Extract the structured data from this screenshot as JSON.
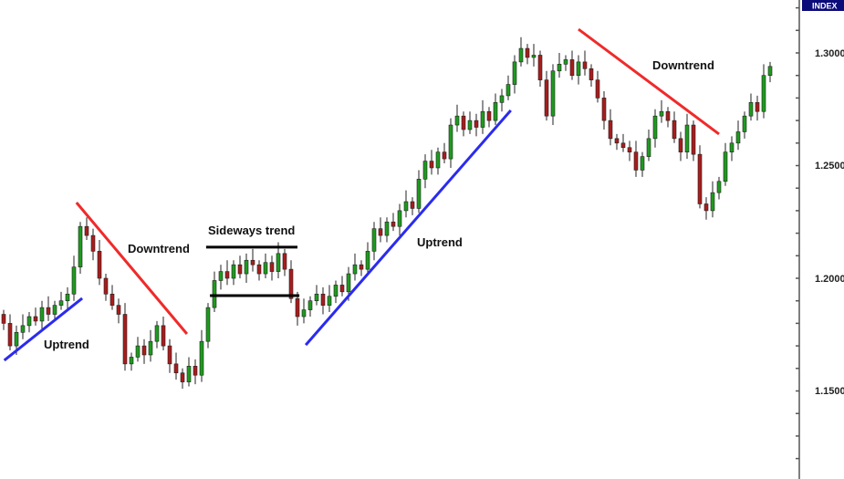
{
  "chart_data": {
    "type": "candlestick",
    "title": "",
    "badge": "INDEX",
    "ylim": [
      1.11,
      1.323
    ],
    "y_ticks": [
      "1.3000",
      "1.2500",
      "1.2000",
      "1.1500"
    ],
    "y_tick_values": [
      1.3,
      1.25,
      1.2,
      1.15
    ],
    "grid": false,
    "colors": {
      "up": "#1e9a1e",
      "down": "#a81c1c",
      "uptrend": "#2b2bf0",
      "downtrend": "#f02a2a",
      "sideways": "#000000",
      "badge": "#0b0b7a"
    },
    "candles": [
      [
        1.184,
        1.186,
        1.177,
        1.18
      ],
      [
        1.18,
        1.184,
        1.168,
        1.17
      ],
      [
        1.17,
        1.179,
        1.166,
        1.176
      ],
      [
        1.176,
        1.184,
        1.173,
        1.179
      ],
      [
        1.179,
        1.185,
        1.176,
        1.183
      ],
      [
        1.183,
        1.187,
        1.179,
        1.181
      ],
      [
        1.181,
        1.19,
        1.177,
        1.187
      ],
      [
        1.187,
        1.192,
        1.181,
        1.184
      ],
      [
        1.184,
        1.19,
        1.181,
        1.188
      ],
      [
        1.188,
        1.194,
        1.186,
        1.19
      ],
      [
        1.19,
        1.196,
        1.186,
        1.193
      ],
      [
        1.193,
        1.21,
        1.19,
        1.205
      ],
      [
        1.205,
        1.225,
        1.202,
        1.223
      ],
      [
        1.223,
        1.227,
        1.217,
        1.219
      ],
      [
        1.219,
        1.222,
        1.208,
        1.212
      ],
      [
        1.212,
        1.217,
        1.197,
        1.2
      ],
      [
        1.2,
        1.202,
        1.19,
        1.193
      ],
      [
        1.193,
        1.197,
        1.186,
        1.188
      ],
      [
        1.188,
        1.191,
        1.18,
        1.184
      ],
      [
        1.184,
        1.189,
        1.159,
        1.162
      ],
      [
        1.162,
        1.167,
        1.159,
        1.165
      ],
      [
        1.165,
        1.174,
        1.163,
        1.17
      ],
      [
        1.17,
        1.173,
        1.162,
        1.166
      ],
      [
        1.166,
        1.177,
        1.163,
        1.172
      ],
      [
        1.172,
        1.181,
        1.169,
        1.179
      ],
      [
        1.179,
        1.183,
        1.168,
        1.17
      ],
      [
        1.17,
        1.173,
        1.158,
        1.162
      ],
      [
        1.162,
        1.167,
        1.155,
        1.158
      ],
      [
        1.158,
        1.16,
        1.151,
        1.154
      ],
      [
        1.154,
        1.165,
        1.152,
        1.161
      ],
      [
        1.161,
        1.164,
        1.153,
        1.157
      ],
      [
        1.157,
        1.177,
        1.154,
        1.172
      ],
      [
        1.172,
        1.189,
        1.169,
        1.187
      ],
      [
        1.187,
        1.203,
        1.185,
        1.199
      ],
      [
        1.199,
        1.206,
        1.195,
        1.203
      ],
      [
        1.203,
        1.208,
        1.197,
        1.2
      ],
      [
        1.2,
        1.208,
        1.197,
        1.206
      ],
      [
        1.206,
        1.21,
        1.2,
        1.202
      ],
      [
        1.202,
        1.211,
        1.198,
        1.208
      ],
      [
        1.208,
        1.213,
        1.203,
        1.206
      ],
      [
        1.206,
        1.208,
        1.199,
        1.202
      ],
      [
        1.202,
        1.211,
        1.2,
        1.207
      ],
      [
        1.207,
        1.21,
        1.199,
        1.203
      ],
      [
        1.203,
        1.216,
        1.2,
        1.211
      ],
      [
        1.211,
        1.213,
        1.201,
        1.204
      ],
      [
        1.204,
        1.208,
        1.189,
        1.191
      ],
      [
        1.191,
        1.194,
        1.179,
        1.183
      ],
      [
        1.183,
        1.191,
        1.18,
        1.186
      ],
      [
        1.186,
        1.192,
        1.183,
        1.19
      ],
      [
        1.19,
        1.197,
        1.188,
        1.193
      ],
      [
        1.193,
        1.196,
        1.184,
        1.188
      ],
      [
        1.188,
        1.197,
        1.185,
        1.192
      ],
      [
        1.192,
        1.199,
        1.189,
        1.197
      ],
      [
        1.197,
        1.201,
        1.192,
        1.194
      ],
      [
        1.194,
        1.205,
        1.19,
        1.202
      ],
      [
        1.202,
        1.211,
        1.199,
        1.206
      ],
      [
        1.206,
        1.208,
        1.201,
        1.204
      ],
      [
        1.204,
        1.216,
        1.202,
        1.212
      ],
      [
        1.212,
        1.225,
        1.208,
        1.222
      ],
      [
        1.222,
        1.227,
        1.216,
        1.219
      ],
      [
        1.219,
        1.227,
        1.216,
        1.225
      ],
      [
        1.225,
        1.229,
        1.221,
        1.223
      ],
      [
        1.223,
        1.233,
        1.219,
        1.23
      ],
      [
        1.23,
        1.239,
        1.227,
        1.234
      ],
      [
        1.234,
        1.236,
        1.228,
        1.231
      ],
      [
        1.231,
        1.248,
        1.229,
        1.244
      ],
      [
        1.244,
        1.255,
        1.24,
        1.252
      ],
      [
        1.252,
        1.257,
        1.246,
        1.249
      ],
      [
        1.249,
        1.258,
        1.246,
        1.256
      ],
      [
        1.256,
        1.26,
        1.251,
        1.253
      ],
      [
        1.253,
        1.271,
        1.249,
        1.268
      ],
      [
        1.268,
        1.277,
        1.265,
        1.272
      ],
      [
        1.272,
        1.274,
        1.263,
        1.266
      ],
      [
        1.266,
        1.274,
        1.264,
        1.27
      ],
      [
        1.27,
        1.273,
        1.263,
        1.267
      ],
      [
        1.267,
        1.279,
        1.264,
        1.274
      ],
      [
        1.274,
        1.276,
        1.267,
        1.27
      ],
      [
        1.27,
        1.282,
        1.268,
        1.278
      ],
      [
        1.278,
        1.284,
        1.274,
        1.281
      ],
      [
        1.281,
        1.29,
        1.279,
        1.286
      ],
      [
        1.286,
        1.299,
        1.282,
        1.296
      ],
      [
        1.296,
        1.307,
        1.294,
        1.302
      ],
      [
        1.302,
        1.304,
        1.295,
        1.298
      ],
      [
        1.298,
        1.304,
        1.294,
        1.299
      ],
      [
        1.299,
        1.301,
        1.285,
        1.288
      ],
      [
        1.288,
        1.292,
        1.27,
        1.272
      ],
      [
        1.272,
        1.295,
        1.268,
        1.292
      ],
      [
        1.292,
        1.3,
        1.289,
        1.295
      ],
      [
        1.295,
        1.299,
        1.292,
        1.297
      ],
      [
        1.297,
        1.301,
        1.288,
        1.29
      ],
      [
        1.29,
        1.299,
        1.286,
        1.296
      ],
      [
        1.296,
        1.301,
        1.29,
        1.293
      ],
      [
        1.293,
        1.295,
        1.285,
        1.288
      ],
      [
        1.288,
        1.292,
        1.278,
        1.28
      ],
      [
        1.28,
        1.283,
        1.266,
        1.27
      ],
      [
        1.27,
        1.275,
        1.259,
        1.262
      ],
      [
        1.262,
        1.264,
        1.257,
        1.26
      ],
      [
        1.26,
        1.264,
        1.256,
        1.258
      ],
      [
        1.258,
        1.261,
        1.252,
        1.256
      ],
      [
        1.256,
        1.261,
        1.245,
        1.248
      ],
      [
        1.248,
        1.256,
        1.245,
        1.254
      ],
      [
        1.254,
        1.266,
        1.252,
        1.262
      ],
      [
        1.262,
        1.275,
        1.258,
        1.272
      ],
      [
        1.272,
        1.279,
        1.269,
        1.274
      ],
      [
        1.274,
        1.276,
        1.267,
        1.27
      ],
      [
        1.27,
        1.274,
        1.26,
        1.262
      ],
      [
        1.262,
        1.265,
        1.252,
        1.256
      ],
      [
        1.256,
        1.273,
        1.253,
        1.268
      ],
      [
        1.268,
        1.27,
        1.252,
        1.255
      ],
      [
        1.255,
        1.259,
        1.231,
        1.233
      ],
      [
        1.233,
        1.236,
        1.226,
        1.23
      ],
      [
        1.23,
        1.243,
        1.227,
        1.238
      ],
      [
        1.238,
        1.245,
        1.235,
        1.243
      ],
      [
        1.243,
        1.26,
        1.241,
        1.256
      ],
      [
        1.256,
        1.263,
        1.252,
        1.26
      ],
      [
        1.26,
        1.27,
        1.257,
        1.265
      ],
      [
        1.265,
        1.274,
        1.262,
        1.272
      ],
      [
        1.272,
        1.282,
        1.27,
        1.278
      ],
      [
        1.278,
        1.281,
        1.27,
        1.274
      ],
      [
        1.274,
        1.295,
        1.271,
        1.29
      ],
      [
        1.29,
        1.296,
        1.287,
        1.294
      ]
    ],
    "annotations": [
      {
        "label": "Uptrend",
        "kind": "uptrend",
        "from": [
          0.1,
          1.1636
        ],
        "to": [
          12.3,
          1.1911
        ]
      },
      {
        "label": "Downtrend",
        "kind": "downtrend",
        "from": [
          11.4,
          1.2336
        ],
        "to": [
          28.7,
          1.1753
        ]
      },
      {
        "label": "Sideways trend",
        "kind": "sideways",
        "from": [
          31.7,
          1.2138
        ],
        "to": [
          46.0,
          1.2138
        ]
      },
      {
        "label": "",
        "kind": "sideways",
        "from": [
          32.3,
          1.1923
        ],
        "to": [
          46.3,
          1.1923
        ]
      },
      {
        "label": "Uptrend",
        "kind": "uptrend",
        "from": [
          47.3,
          1.1704
        ],
        "to": [
          79.4,
          1.2745
        ]
      },
      {
        "label": "Downtrend",
        "kind": "downtrend",
        "from": [
          90.0,
          1.3105
        ],
        "to": [
          112.0,
          1.264
        ]
      }
    ]
  }
}
